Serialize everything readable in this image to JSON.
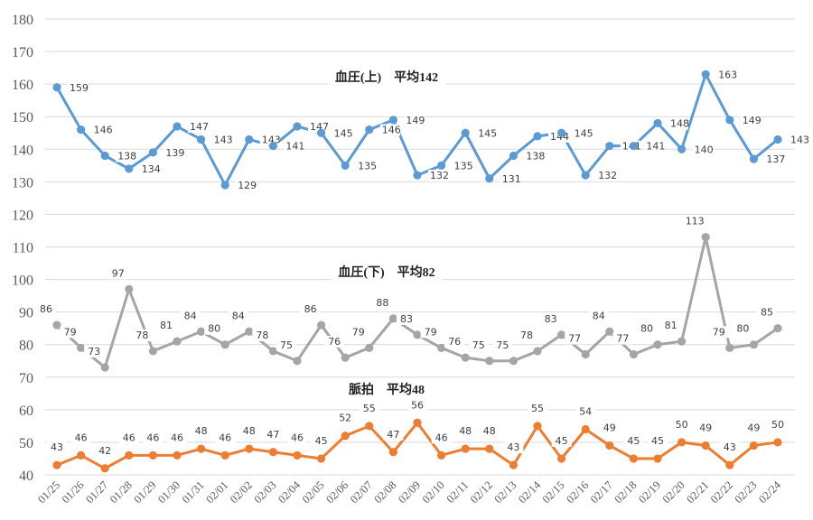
{
  "chart_data": {
    "type": "line",
    "categories": [
      "01/25",
      "01/26",
      "01/27",
      "01/28",
      "01/29",
      "01/30",
      "01/31",
      "02/01",
      "02/02",
      "02/03",
      "02/04",
      "02/05",
      "02/06",
      "02/07",
      "02/08",
      "02/09",
      "02/10",
      "02/11",
      "02/12",
      "02/13",
      "02/14",
      "02/15",
      "02/16",
      "02/17",
      "02/18",
      "02/19",
      "02/20",
      "02/21",
      "02/22",
      "02/23",
      "02/24"
    ],
    "ylim": [
      40,
      180
    ],
    "yticks": [
      40,
      50,
      60,
      70,
      80,
      90,
      100,
      110,
      120,
      130,
      140,
      150,
      160,
      170,
      180
    ],
    "grid": true,
    "series": [
      {
        "name": "血圧(上)",
        "title": "血圧(上)　平均142",
        "color": "#5b9bd5",
        "values": [
          159,
          146,
          138,
          134,
          139,
          147,
          143,
          129,
          143,
          141,
          147,
          145,
          135,
          146,
          149,
          132,
          135,
          145,
          131,
          138,
          144,
          145,
          132,
          141,
          141,
          148,
          140,
          163,
          149,
          137,
          143
        ]
      },
      {
        "name": "血圧(下)",
        "title": "血圧(下)　平均82",
        "color": "#a5a5a5",
        "values": [
          86,
          79,
          73,
          97,
          78,
          81,
          84,
          80,
          84,
          78,
          75,
          86,
          76,
          79,
          88,
          83,
          79,
          76,
          75,
          75,
          78,
          83,
          77,
          84,
          77,
          80,
          81,
          113,
          79,
          80,
          85
        ]
      },
      {
        "name": "脈拍",
        "title": "脈拍　平均48",
        "color": "#ed7d31",
        "values": [
          43,
          46,
          42,
          46,
          46,
          46,
          48,
          46,
          48,
          47,
          46,
          45,
          52,
          55,
          47,
          56,
          46,
          48,
          48,
          43,
          55,
          45,
          54,
          49,
          45,
          45,
          50,
          49,
          43,
          49,
          50
        ]
      }
    ]
  }
}
